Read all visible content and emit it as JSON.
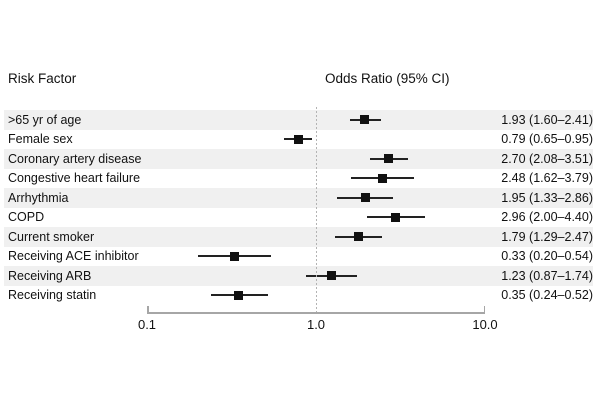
{
  "chart_data": {
    "type": "scatter",
    "subtype": "forest-plot",
    "column_headers": {
      "left": "Risk Factor",
      "right": "Odds Ratio (95% CI)"
    },
    "x_scale": "log10",
    "xlim": [
      0.1,
      10.0
    ],
    "x_ticks": [
      {
        "value": 0.1,
        "label": "0.1"
      },
      {
        "value": 1.0,
        "label": "1.0"
      },
      {
        "value": 10.0,
        "label": "10.0"
      }
    ],
    "reference_line_x": 1.0,
    "grid": false,
    "rows": [
      {
        "label": ">65 yr of age",
        "odds_ratio": 1.93,
        "ci_low": 1.6,
        "ci_high": 2.41,
        "display": "1.93 (1.60–2.41)"
      },
      {
        "label": "Female sex",
        "odds_ratio": 0.79,
        "ci_low": 0.65,
        "ci_high": 0.95,
        "display": "0.79 (0.65–0.95)"
      },
      {
        "label": "Coronary artery disease",
        "odds_ratio": 2.7,
        "ci_low": 2.08,
        "ci_high": 3.51,
        "display": "2.70 (2.08–3.51)"
      },
      {
        "label": "Congestive heart failure",
        "odds_ratio": 2.48,
        "ci_low": 1.62,
        "ci_high": 3.79,
        "display": "2.48 (1.62–3.79)"
      },
      {
        "label": "Arrhythmia",
        "odds_ratio": 1.95,
        "ci_low": 1.33,
        "ci_high": 2.86,
        "display": "1.95 (1.33–2.86)"
      },
      {
        "label": "COPD",
        "odds_ratio": 2.96,
        "ci_low": 2.0,
        "ci_high": 4.4,
        "display": "2.96 (2.00–4.40)"
      },
      {
        "label": "Current smoker",
        "odds_ratio": 1.79,
        "ci_low": 1.29,
        "ci_high": 2.47,
        "display": "1.79 (1.29–2.47)"
      },
      {
        "label": "Receiving ACE inhibitor",
        "odds_ratio": 0.33,
        "ci_low": 0.2,
        "ci_high": 0.54,
        "display": "0.33 (0.20–0.54)"
      },
      {
        "label": "Receiving ARB",
        "odds_ratio": 1.23,
        "ci_low": 0.87,
        "ci_high": 1.74,
        "display": "1.23 (0.87–1.74)"
      },
      {
        "label": "Receiving statin",
        "odds_ratio": 0.35,
        "ci_low": 0.24,
        "ci_high": 0.52,
        "display": "0.35 (0.24–0.52)"
      }
    ]
  },
  "styles": {
    "band_color": "#f0f0f0",
    "band_alt_color": "#ffffff",
    "marker_color": "#111111",
    "ci_bar_color": "#222222",
    "axis_color": "#a6a6a6",
    "reference_line_color": "#b3b3b3",
    "text_color": "#111111"
  }
}
